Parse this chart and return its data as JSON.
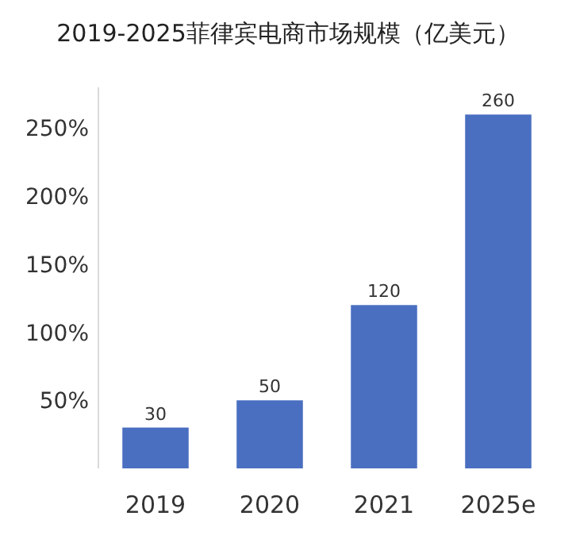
{
  "chart_data": {
    "type": "bar",
    "title": "2019-2025菲律宾电商市场规模（亿美元）",
    "categories": [
      "2019",
      "2020",
      "2021",
      "2025e"
    ],
    "values": [
      30,
      50,
      120,
      260
    ],
    "color": "#4a6fc1",
    "ylim": [
      0,
      280
    ],
    "yticks": [
      {
        "value": 50,
        "label": "50%"
      },
      {
        "value": 100,
        "label": "100%"
      },
      {
        "value": 150,
        "label": "150%"
      },
      {
        "value": 200,
        "label": "200%"
      },
      {
        "value": 250,
        "label": "250%"
      }
    ],
    "data_labels": true
  }
}
